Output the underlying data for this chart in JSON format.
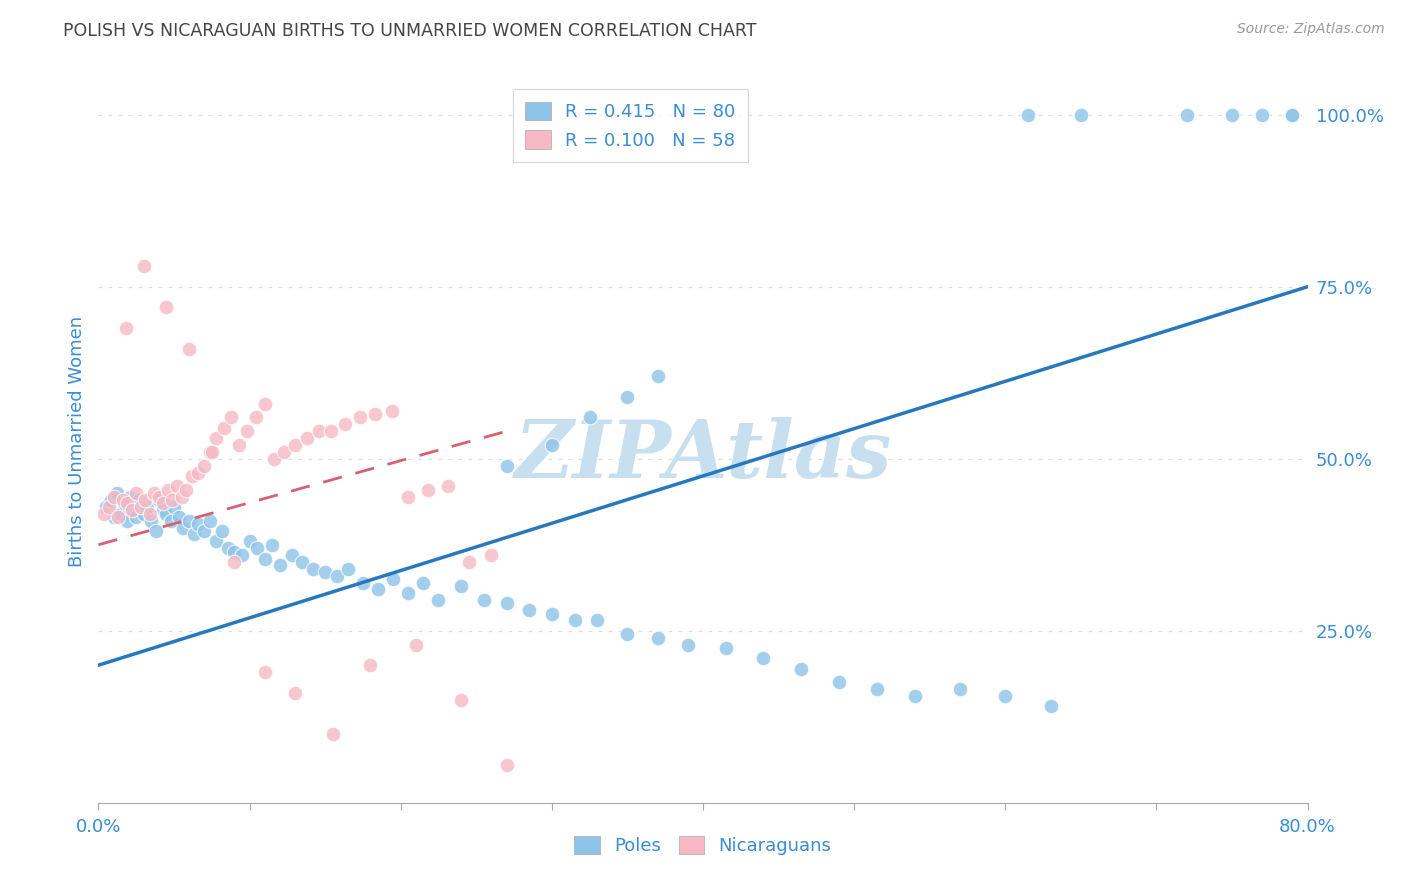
{
  "title": "POLISH VS NICARAGUAN BIRTHS TO UNMARRIED WOMEN CORRELATION CHART",
  "source": "Source: ZipAtlas.com",
  "ylabel": "Births to Unmarried Women",
  "poles_label": "Poles",
  "nicaraguans_label": "Nicaraguans",
  "blue_color": "#8ec4e8",
  "pink_color": "#f5b8c4",
  "blue_line_color": "#2878be",
  "pink_line_color": "#d96070",
  "watermark": "ZIPAtlas",
  "watermark_color": "#c8dff0",
  "title_color": "#444444",
  "axis_label_color": "#3a8cd4",
  "tick_color": "#3a8cd4",
  "grid_color": "#dddddd",
  "background_color": "#ffffff",
  "legend_blue_label": "R = 0.415   N = 80",
  "legend_pink_label": "R = 0.100   N = 58",
  "xlim": [
    0.0,
    0.8
  ],
  "ylim": [
    0.0,
    1.05
  ],
  "yticks": [
    0.0,
    0.25,
    0.5,
    0.75,
    1.0
  ],
  "ytick_labels": [
    "",
    "25.0%",
    "50.0%",
    "75.0%",
    "100.0%"
  ],
  "xtick_labels": [
    "0.0%",
    "",
    "",
    "",
    "",
    "",
    "",
    "",
    "80.0%"
  ],
  "poles_x": [
    0.005,
    0.008,
    0.01,
    0.012,
    0.015,
    0.017,
    0.019,
    0.021,
    0.023,
    0.025,
    0.027,
    0.03,
    0.032,
    0.035,
    0.038,
    0.04,
    0.043,
    0.045,
    0.048,
    0.05,
    0.053,
    0.056,
    0.06,
    0.063,
    0.066,
    0.07,
    0.074,
    0.078,
    0.082,
    0.086,
    0.09,
    0.095,
    0.1,
    0.105,
    0.11,
    0.115,
    0.12,
    0.128,
    0.135,
    0.142,
    0.15,
    0.158,
    0.165,
    0.175,
    0.185,
    0.195,
    0.205,
    0.215,
    0.225,
    0.24,
    0.255,
    0.27,
    0.285,
    0.3,
    0.315,
    0.33,
    0.35,
    0.37,
    0.39,
    0.415,
    0.44,
    0.465,
    0.49,
    0.515,
    0.54,
    0.57,
    0.6,
    0.63,
    0.27,
    0.3,
    0.325,
    0.35,
    0.37,
    0.615,
    0.65,
    0.72,
    0.75,
    0.77,
    0.79,
    0.79
  ],
  "poles_y": [
    0.43,
    0.44,
    0.415,
    0.45,
    0.42,
    0.435,
    0.41,
    0.445,
    0.425,
    0.415,
    0.44,
    0.42,
    0.43,
    0.41,
    0.395,
    0.44,
    0.425,
    0.42,
    0.41,
    0.43,
    0.415,
    0.4,
    0.41,
    0.39,
    0.405,
    0.395,
    0.41,
    0.38,
    0.395,
    0.37,
    0.365,
    0.36,
    0.38,
    0.37,
    0.355,
    0.375,
    0.345,
    0.36,
    0.35,
    0.34,
    0.335,
    0.33,
    0.34,
    0.32,
    0.31,
    0.325,
    0.305,
    0.32,
    0.295,
    0.315,
    0.295,
    0.29,
    0.28,
    0.275,
    0.265,
    0.265,
    0.245,
    0.24,
    0.23,
    0.225,
    0.21,
    0.195,
    0.175,
    0.165,
    0.155,
    0.165,
    0.155,
    0.14,
    0.49,
    0.52,
    0.56,
    0.59,
    0.62,
    1.0,
    1.0,
    1.0,
    1.0,
    1.0,
    1.0,
    1.0
  ],
  "nicaraguans_x": [
    0.004,
    0.007,
    0.01,
    0.013,
    0.016,
    0.019,
    0.022,
    0.025,
    0.028,
    0.031,
    0.034,
    0.037,
    0.04,
    0.043,
    0.046,
    0.049,
    0.052,
    0.055,
    0.058,
    0.062,
    0.066,
    0.07,
    0.074,
    0.078,
    0.083,
    0.088,
    0.093,
    0.098,
    0.104,
    0.11,
    0.116,
    0.123,
    0.13,
    0.138,
    0.146,
    0.154,
    0.163,
    0.173,
    0.183,
    0.194,
    0.205,
    0.218,
    0.231,
    0.245,
    0.26,
    0.018,
    0.03,
    0.045,
    0.06,
    0.075,
    0.09,
    0.11,
    0.13,
    0.155,
    0.18,
    0.21,
    0.24,
    0.27
  ],
  "nicaraguans_y": [
    0.42,
    0.43,
    0.445,
    0.415,
    0.44,
    0.435,
    0.425,
    0.45,
    0.43,
    0.44,
    0.42,
    0.45,
    0.445,
    0.435,
    0.455,
    0.44,
    0.46,
    0.445,
    0.455,
    0.475,
    0.48,
    0.49,
    0.51,
    0.53,
    0.545,
    0.56,
    0.52,
    0.54,
    0.56,
    0.58,
    0.5,
    0.51,
    0.52,
    0.53,
    0.54,
    0.54,
    0.55,
    0.56,
    0.565,
    0.57,
    0.445,
    0.455,
    0.46,
    0.35,
    0.36,
    0.69,
    0.78,
    0.72,
    0.66,
    0.51,
    0.35,
    0.19,
    0.16,
    0.1,
    0.2,
    0.23,
    0.15,
    0.055
  ],
  "blue_line_x0": 0.0,
  "blue_line_y0": 0.2,
  "blue_line_x1": 0.8,
  "blue_line_y1": 0.75,
  "pink_line_x0": 0.0,
  "pink_line_y0": 0.375,
  "pink_line_x1": 0.27,
  "pink_line_y1": 0.54
}
